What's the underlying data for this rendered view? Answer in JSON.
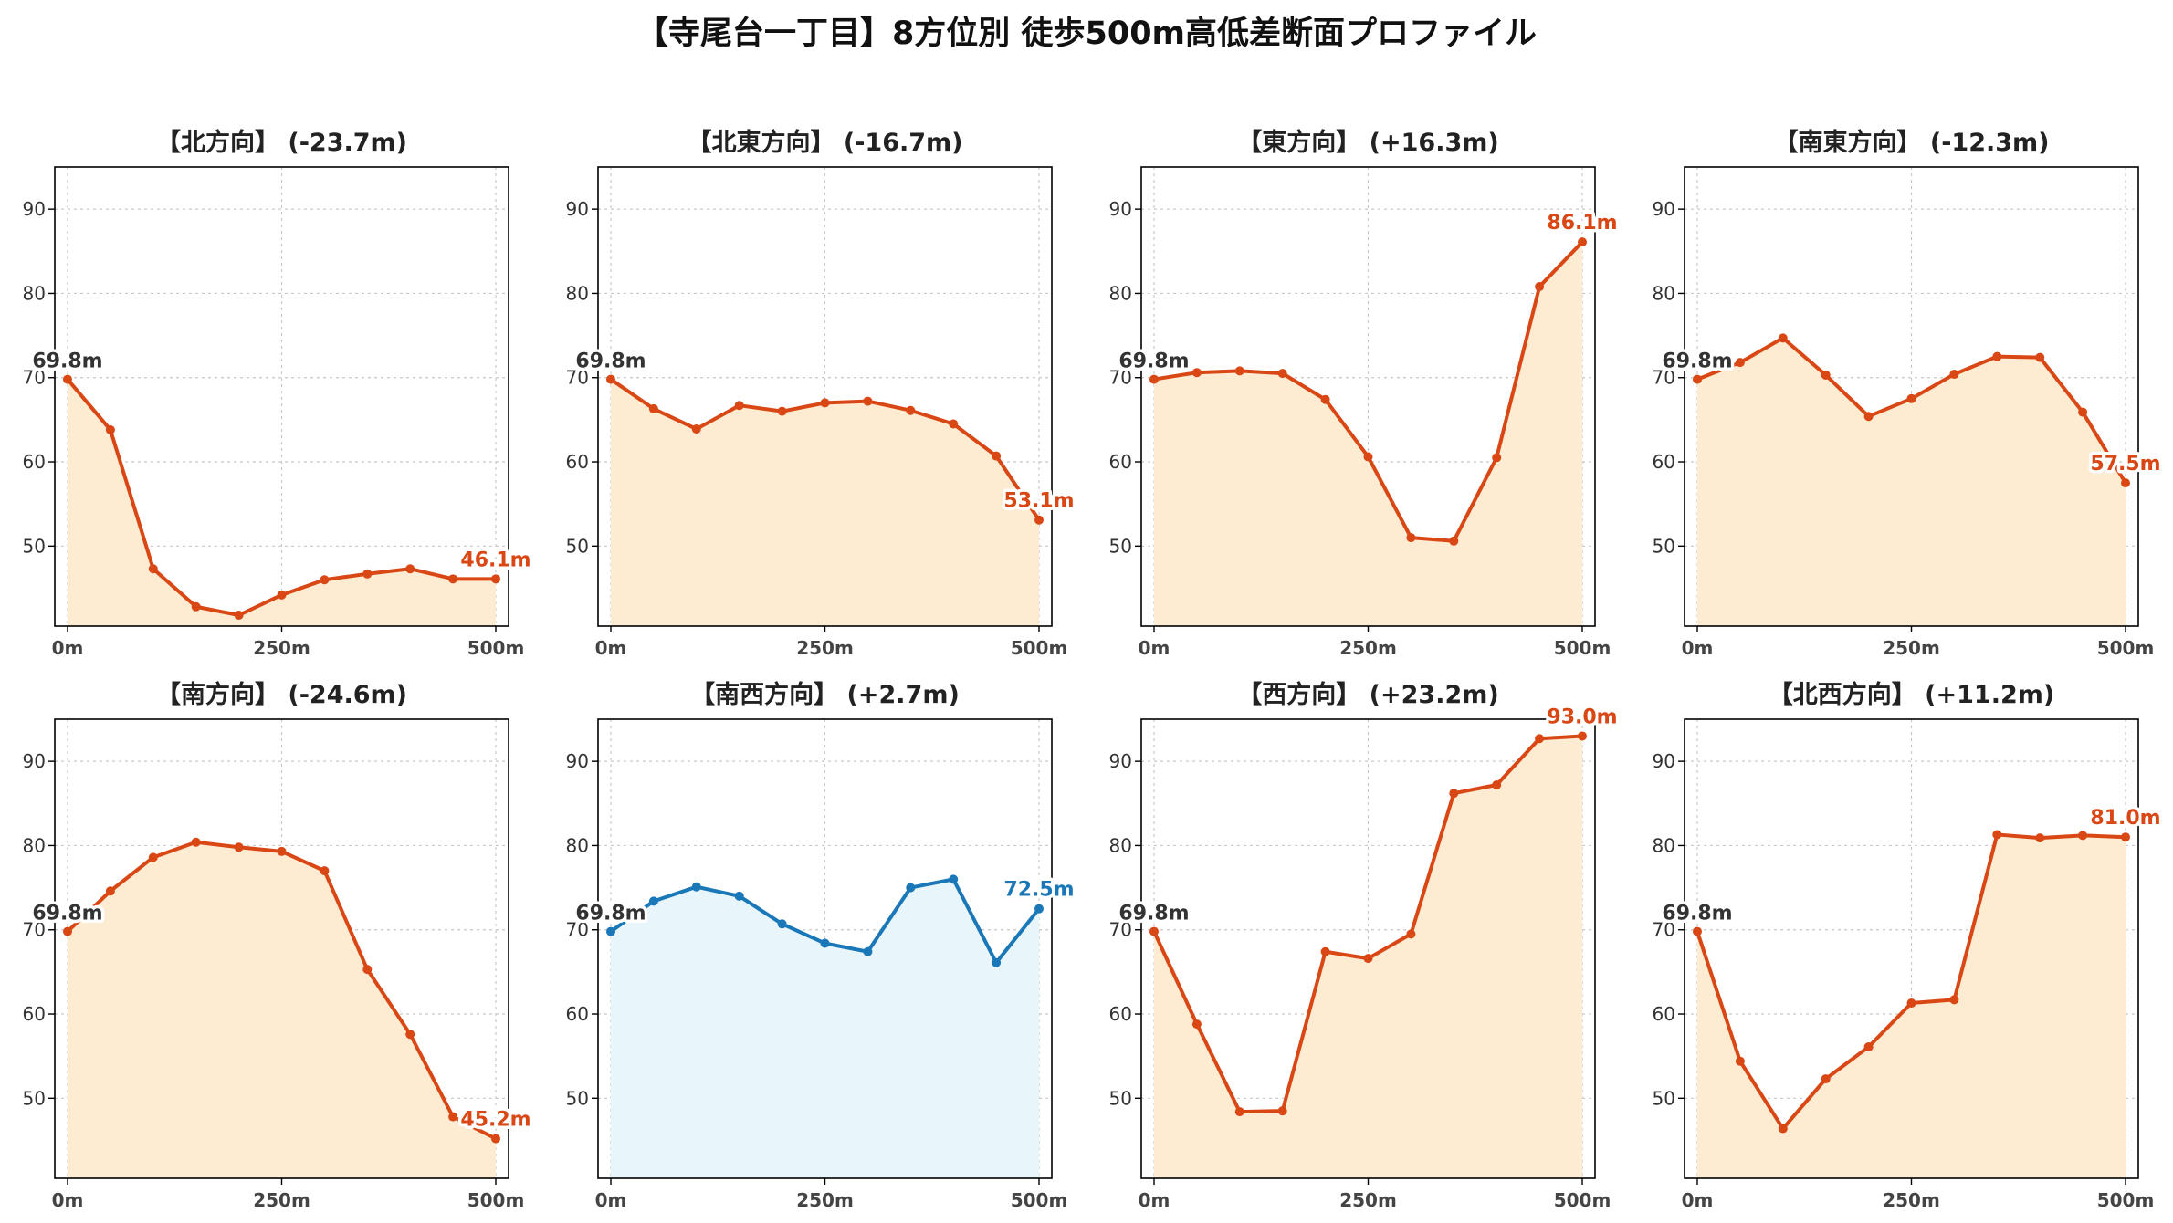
{
  "title": "【寺尾台一丁目】8方位別 徒歩500m高低差断面プロファイル",
  "colors": {
    "down_line": "#D94715",
    "down_fill": "#FDEBD2",
    "up_line": "#1A78B8",
    "up_fill": "#E8F5FB",
    "start_label": "#333333",
    "grid": "#c8c8c8"
  },
  "chart_data": [
    {
      "type": "line",
      "title": "【北方向】 (-23.7m)",
      "color": "orange",
      "x": [
        0,
        50,
        100,
        150,
        200,
        250,
        300,
        350,
        400,
        450,
        500
      ],
      "y": [
        69.8,
        63.8,
        47.3,
        42.8,
        41.8,
        44.2,
        46.0,
        46.7,
        47.3,
        46.1,
        46.1
      ],
      "start_label": "69.8m",
      "end_label": "46.1m",
      "xticks": [
        "0m",
        "250m",
        "500m"
      ],
      "yticks": [
        50,
        60,
        70,
        80,
        90
      ],
      "ylim": [
        40.5,
        95
      ],
      "grid": true
    },
    {
      "type": "line",
      "title": "【北東方向】 (-16.7m)",
      "color": "orange",
      "x": [
        0,
        50,
        100,
        150,
        200,
        250,
        300,
        350,
        400,
        450,
        500
      ],
      "y": [
        69.8,
        66.3,
        63.9,
        66.7,
        66.0,
        67.0,
        67.2,
        66.1,
        64.5,
        60.7,
        53.1
      ],
      "start_label": "69.8m",
      "end_label": "53.1m",
      "xticks": [
        "0m",
        "250m",
        "500m"
      ],
      "yticks": [
        50,
        60,
        70,
        80,
        90
      ],
      "ylim": [
        40.5,
        95
      ],
      "grid": true
    },
    {
      "type": "line",
      "title": "【東方向】 (+16.3m)",
      "color": "orange",
      "x": [
        0,
        50,
        100,
        150,
        200,
        250,
        300,
        350,
        400,
        450,
        500
      ],
      "y": [
        69.8,
        70.6,
        70.8,
        70.5,
        67.4,
        60.6,
        51.0,
        50.6,
        60.5,
        80.8,
        86.1
      ],
      "start_label": "69.8m",
      "end_label": "86.1m",
      "xticks": [
        "0m",
        "250m",
        "500m"
      ],
      "yticks": [
        50,
        60,
        70,
        80,
        90
      ],
      "ylim": [
        40.5,
        95
      ],
      "grid": true
    },
    {
      "type": "line",
      "title": "【南東方向】 (-12.3m)",
      "color": "orange",
      "x": [
        0,
        50,
        100,
        150,
        200,
        250,
        300,
        350,
        400,
        450,
        500
      ],
      "y": [
        69.8,
        71.8,
        74.7,
        70.3,
        65.4,
        67.5,
        70.4,
        72.5,
        72.4,
        65.9,
        57.5
      ],
      "start_label": "69.8m",
      "end_label": "57.5m",
      "xticks": [
        "0m",
        "250m",
        "500m"
      ],
      "yticks": [
        50,
        60,
        70,
        80,
        90
      ],
      "ylim": [
        40.5,
        95
      ],
      "grid": true
    },
    {
      "type": "line",
      "title": "【南方向】 (-24.6m)",
      "color": "orange",
      "x": [
        0,
        50,
        100,
        150,
        200,
        250,
        300,
        350,
        400,
        450,
        500
      ],
      "y": [
        69.8,
        74.6,
        78.6,
        80.4,
        79.8,
        79.3,
        77.0,
        65.3,
        57.6,
        47.8,
        45.2
      ],
      "start_label": "69.8m",
      "end_label": "45.2m",
      "xticks": [
        "0m",
        "250m",
        "500m"
      ],
      "yticks": [
        50,
        60,
        70,
        80,
        90
      ],
      "ylim": [
        40.5,
        95
      ],
      "grid": true
    },
    {
      "type": "line",
      "title": "【南西方向】 (+2.7m)",
      "color": "blue",
      "x": [
        0,
        50,
        100,
        150,
        200,
        250,
        300,
        350,
        400,
        450,
        500
      ],
      "y": [
        69.8,
        73.4,
        75.1,
        74.0,
        70.7,
        68.4,
        67.4,
        75.0,
        76.0,
        66.1,
        72.5
      ],
      "start_label": "69.8m",
      "end_label": "72.5m",
      "xticks": [
        "0m",
        "250m",
        "500m"
      ],
      "yticks": [
        50,
        60,
        70,
        80,
        90
      ],
      "ylim": [
        40.5,
        95
      ],
      "grid": true
    },
    {
      "type": "line",
      "title": "【西方向】 (+23.2m)",
      "color": "orange",
      "x": [
        0,
        50,
        100,
        150,
        200,
        250,
        300,
        350,
        400,
        450,
        500
      ],
      "y": [
        69.8,
        58.8,
        48.4,
        48.5,
        67.4,
        66.6,
        69.5,
        86.2,
        87.2,
        92.7,
        93.0
      ],
      "start_label": "69.8m",
      "end_label": "93.0m",
      "xticks": [
        "0m",
        "250m",
        "500m"
      ],
      "yticks": [
        50,
        60,
        70,
        80,
        90
      ],
      "ylim": [
        40.5,
        95
      ],
      "grid": true
    },
    {
      "type": "line",
      "title": "【北西方向】 (+11.2m)",
      "color": "orange",
      "x": [
        0,
        50,
        100,
        150,
        200,
        250,
        300,
        350,
        400,
        450,
        500
      ],
      "y": [
        69.8,
        54.4,
        46.4,
        52.3,
        56.1,
        61.3,
        61.7,
        81.3,
        80.9,
        81.2,
        81.0
      ],
      "start_label": "69.8m",
      "end_label": "81.0m",
      "xticks": [
        "0m",
        "250m",
        "500m"
      ],
      "yticks": [
        50,
        60,
        70,
        80,
        90
      ],
      "ylim": [
        40.5,
        95
      ],
      "grid": true
    }
  ]
}
